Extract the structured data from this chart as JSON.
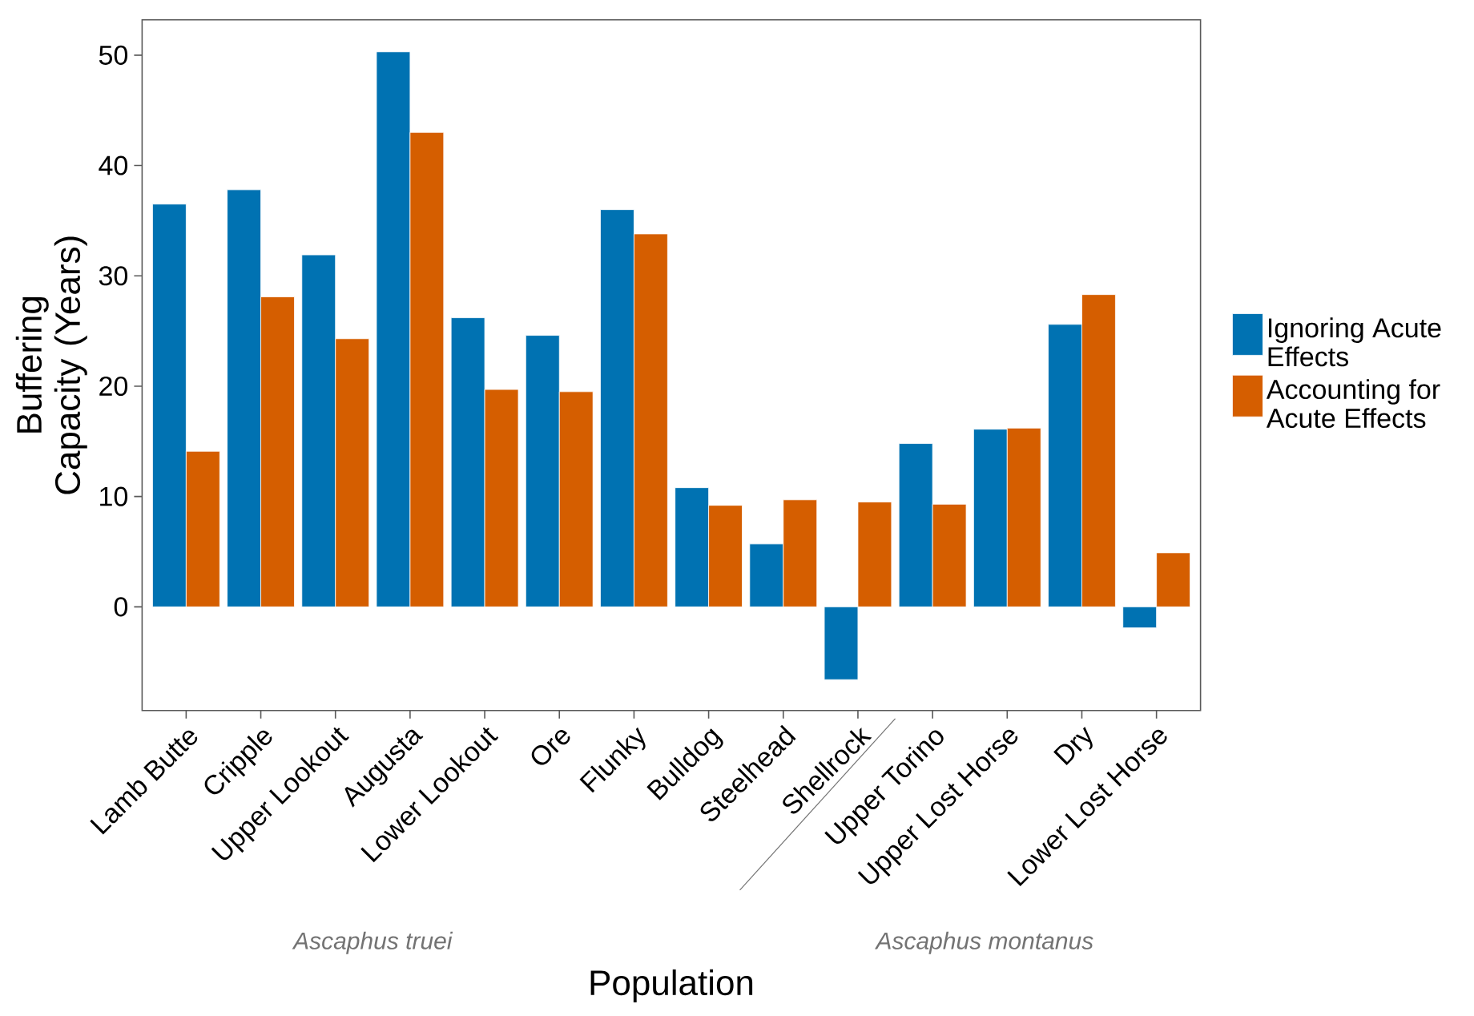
{
  "chart_data": {
    "type": "bar",
    "xlabel": "Population",
    "ylabel": "Buffering Capacity (Years)",
    "categories": [
      "Lamb Butte",
      "Cripple",
      "Upper Lookout",
      "Augusta",
      "Lower Lookout",
      "Ore",
      "Flunky",
      "Bulldog",
      "Steelhead",
      "Shellrock",
      "Upper Torino",
      "Upper Lost Horse",
      "Dry",
      "Lower Lost Horse"
    ],
    "series": [
      {
        "name": "Ignoring Acute Effects",
        "color": "#0072b2",
        "values": [
          36.5,
          37.8,
          31.9,
          50.3,
          26.2,
          24.6,
          36.0,
          10.8,
          5.7,
          -6.6,
          14.8,
          16.1,
          25.6,
          -1.9
        ]
      },
      {
        "name": "Accounting for Acute Effects",
        "color": "#d55e00",
        "values": [
          14.1,
          28.1,
          24.3,
          43.0,
          19.7,
          19.5,
          33.8,
          9.2,
          9.7,
          9.5,
          9.3,
          16.2,
          28.3,
          4.9
        ]
      }
    ],
    "ylim": [
      -9.4,
      53.2
    ],
    "yticks": [
      0,
      10,
      20,
      30,
      40,
      50
    ],
    "legend": "right",
    "annotations": [
      "Ascaphus truei",
      "Ascaphus montanus"
    ]
  }
}
